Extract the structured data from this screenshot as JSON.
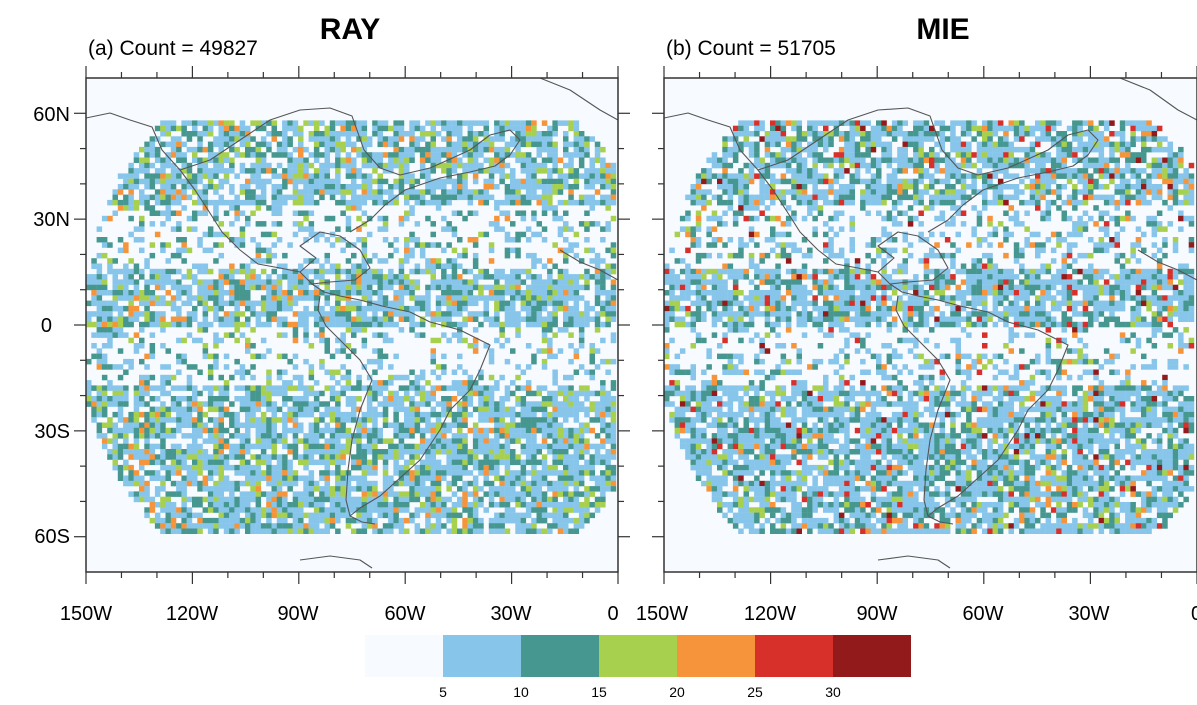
{
  "panels": [
    {
      "title": "RAY",
      "subtitle": "(a) Count = 49827",
      "x_ticks": [
        "150W",
        "120W",
        "90W",
        "60W",
        "30W",
        "0"
      ],
      "y_ticks": [
        "60N",
        "30N",
        "0",
        "30S",
        "60S"
      ]
    },
    {
      "title": "MIE",
      "subtitle": "(b) Count = 51705",
      "x_ticks": [
        "150W",
        "120W",
        "90W",
        "60W",
        "30W",
        "0"
      ],
      "y_ticks": []
    }
  ],
  "map_extent": {
    "lon": [
      -150,
      0
    ],
    "lat": [
      -70,
      70
    ]
  },
  "colorbar": {
    "labels": [
      "5",
      "10",
      "15",
      "20",
      "25",
      "30"
    ],
    "bins": [
      {
        "range": "<5",
        "color": "#f7fbff"
      },
      {
        "range": "5-10",
        "color": "#87c6ea"
      },
      {
        "range": "10-15",
        "color": "#46978f"
      },
      {
        "range": "15-20",
        "color": "#a8d04f"
      },
      {
        "range": "20-25",
        "color": "#f5943a"
      },
      {
        "range": "25-30",
        "color": "#d7302a"
      },
      {
        "range": ">30",
        "color": "#931a1a"
      }
    ]
  },
  "colors": {
    "ocean": "#f7fbff",
    "coast": "#555555",
    "frame": "#333333"
  }
}
